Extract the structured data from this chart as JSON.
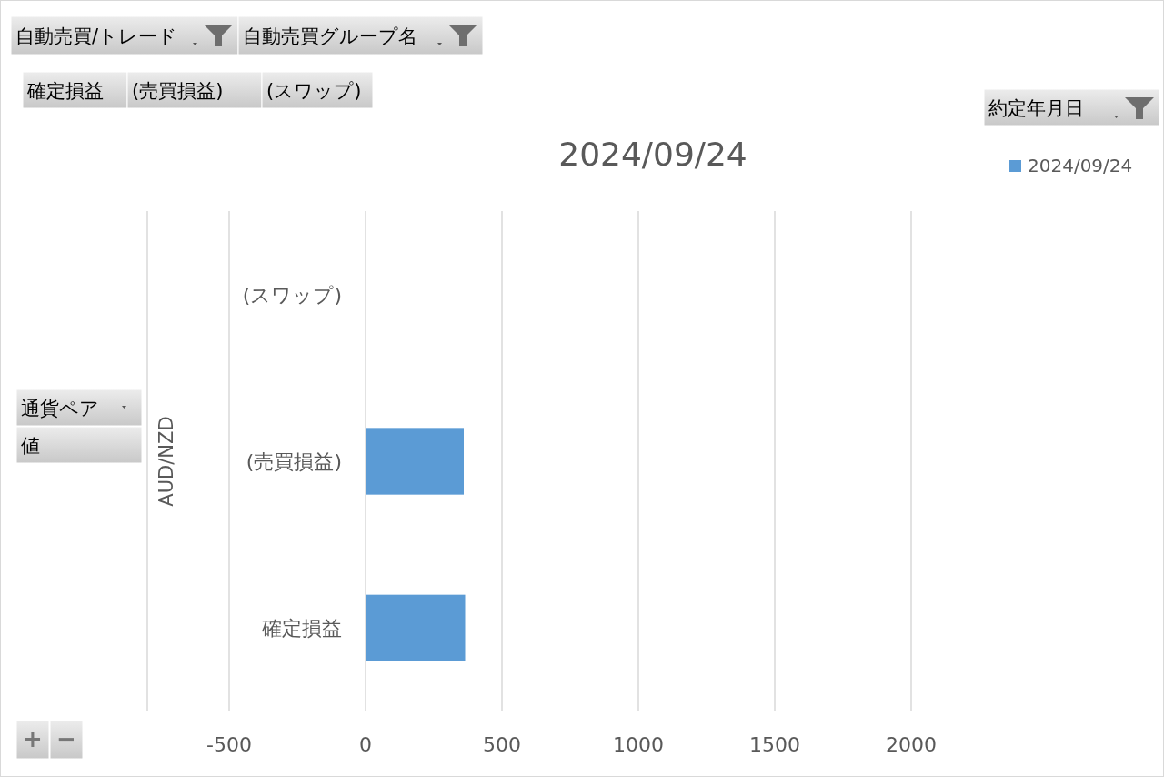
{
  "chart_data": {
    "type": "bar",
    "orientation": "horizontal",
    "title": "2024/09/24",
    "ylabel": "AUD/NZD",
    "categories": [
      "(スワップ)",
      "(売買損益)",
      "確定損益"
    ],
    "series": [
      {
        "name": "2024/09/24",
        "color": "#5b9bd5",
        "values": [
          null,
          360,
          365
        ]
      }
    ],
    "xlim": [
      -800,
      2000
    ],
    "xticks": [
      -500,
      0,
      500,
      1000,
      1500,
      2000
    ],
    "grid": "x",
    "legend": "top right",
    "annotations": [
      "自動売買/トレード",
      "自動売買グループ名",
      "確定損益",
      "(売買損益)",
      "(スワップ)",
      "約定年月日",
      "通貨ペア",
      "値",
      "+",
      "−"
    ]
  }
}
